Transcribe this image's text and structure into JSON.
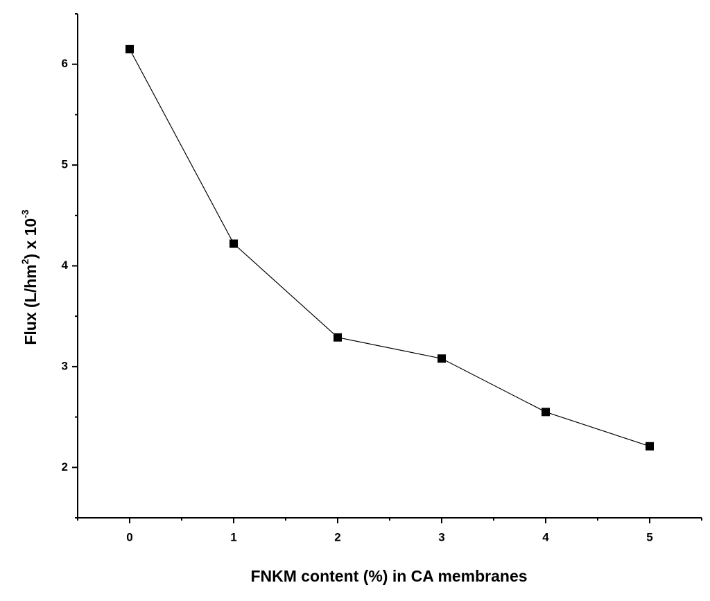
{
  "chart_data": {
    "type": "line",
    "x_label": "FNKM content (%) in CA membranes",
    "y_label_parts": [
      "Flux (L/hm",
      "2",
      ") x 10",
      "-3"
    ],
    "x": [
      0,
      1,
      2,
      3,
      4,
      5
    ],
    "series": [
      {
        "color": "#000000",
        "marker": "square",
        "values": [
          6.15,
          4.22,
          3.29,
          3.08,
          2.55,
          2.21
        ]
      }
    ],
    "xlim": [
      -0.5,
      5.5
    ],
    "ylim": [
      1.5,
      6.5
    ],
    "xticks": [
      0,
      1,
      2,
      3,
      4,
      5
    ],
    "yticks": [
      2,
      3,
      4,
      5,
      6
    ],
    "xminor_ticks": [
      -0.5,
      0.5,
      1.5,
      2.5,
      3.5,
      4.5,
      5.5
    ],
    "yminor_ticks": [
      1.5,
      2.5,
      3.5,
      4.5,
      5.5,
      6.5
    ],
    "grid": false
  }
}
